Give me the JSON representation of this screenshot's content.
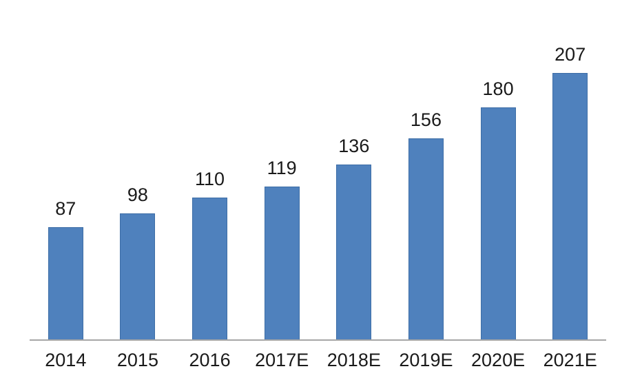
{
  "chart_data": {
    "type": "bar",
    "categories": [
      "2014",
      "2015",
      "2016",
      "2017E",
      "2018E",
      "2019E",
      "2020E",
      "2021E"
    ],
    "values": [
      87,
      98,
      110,
      119,
      136,
      156,
      180,
      207
    ],
    "title": "",
    "xlabel": "",
    "ylabel": "",
    "ylim": [
      0,
      220
    ],
    "grid": false,
    "legend": false,
    "data_labels_shown": true,
    "bar_color": "#4f81bd",
    "bar_border_color": "#3d6da6",
    "axis_line_color": "#a6a6a6",
    "label_color": "#1a1a1a",
    "background_color": "#ffffff"
  }
}
